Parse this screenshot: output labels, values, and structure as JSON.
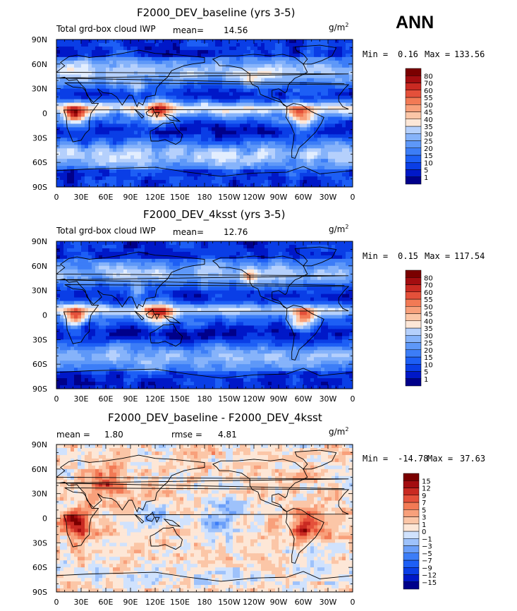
{
  "season": "ANN",
  "units_label": "g/m",
  "units_superscript": "2",
  "colors": {
    "seq": [
      "#00008a",
      "#0018c8",
      "#0a3ee6",
      "#1d5ff5",
      "#3c7df7",
      "#5e98f8",
      "#86b3fa",
      "#b5d0fc",
      "#e3eefe",
      "#fde7d7",
      "#fbc6a7",
      "#f8a07b",
      "#f27a55",
      "#e4503a",
      "#c92a22",
      "#a30d10",
      "#7a0000"
    ],
    "div": [
      "#00008a",
      "#0018c8",
      "#0a3ee6",
      "#1d5ff5",
      "#3c7df7",
      "#6b9ff9",
      "#9ec2fb",
      "#d0e2fd",
      "#fde7d7",
      "#fbc6a7",
      "#f8a07b",
      "#f27a55",
      "#e4503a",
      "#c92a22",
      "#a30d10",
      "#7a0000"
    ]
  },
  "chart_data": [
    {
      "type": "heatmap",
      "title": "F2000_DEV_baseline (yrs 3-5)",
      "subtitle_left": "Total grd-box cloud IWP",
      "stat1_label": "mean=",
      "stat1_value": "14.56",
      "min_label": "Min =",
      "min_value": "0.16",
      "max_label": "Max =",
      "max_value": "133.56",
      "colorbar_levels": [
        "1",
        "5",
        "10",
        "15",
        "20",
        "25",
        "30",
        "35",
        "40",
        "45",
        "50",
        "55",
        "60",
        "70",
        "80"
      ],
      "xticks": [
        "0",
        "30E",
        "60E",
        "90E",
        "120E",
        "150E",
        "180",
        "150W",
        "120W",
        "90W",
        "60W",
        "30W",
        "0"
      ],
      "yticks": [
        "90N",
        "60N",
        "30N",
        "0",
        "30S",
        "60S",
        "90S"
      ]
    },
    {
      "type": "heatmap",
      "title": "F2000_DEV_4ksst (yrs 3-5)",
      "subtitle_left": "Total grd-box cloud IWP",
      "stat1_label": "mean=",
      "stat1_value": "12.76",
      "min_label": "Min =",
      "min_value": "0.15",
      "max_label": "Max =",
      "max_value": "117.54",
      "colorbar_levels": [
        "1",
        "5",
        "10",
        "15",
        "20",
        "25",
        "30",
        "35",
        "40",
        "45",
        "50",
        "55",
        "60",
        "70",
        "80"
      ],
      "xticks": [
        "0",
        "30E",
        "60E",
        "90E",
        "120E",
        "150E",
        "180",
        "150W",
        "120W",
        "90W",
        "60W",
        "30W",
        "0"
      ],
      "yticks": [
        "90N",
        "60N",
        "30N",
        "0",
        "30S",
        "60S",
        "90S"
      ]
    },
    {
      "type": "heatmap",
      "title": "F2000_DEV_baseline - F2000_DEV_4ksst",
      "stat1_label": "mean =",
      "stat1_value": "1.80",
      "stat2_label": "rmse =",
      "stat2_value": "4.81",
      "min_label": "Min =",
      "min_value": "-14.78",
      "max_label": "Max =",
      "max_value": "37.63",
      "colorbar_levels": [
        "−15",
        "−12",
        "−9",
        "−7",
        "−5",
        "−3",
        "−1",
        "0",
        "1",
        "3",
        "5",
        "7",
        "9",
        "12",
        "15"
      ],
      "xticks": [
        "0",
        "30E",
        "60E",
        "90E",
        "120E",
        "150E",
        "180",
        "150W",
        "120W",
        "90W",
        "60W",
        "30W",
        "0"
      ],
      "yticks": [
        "90N",
        "60N",
        "30N",
        "0",
        "30S",
        "60S",
        "90S"
      ]
    }
  ]
}
